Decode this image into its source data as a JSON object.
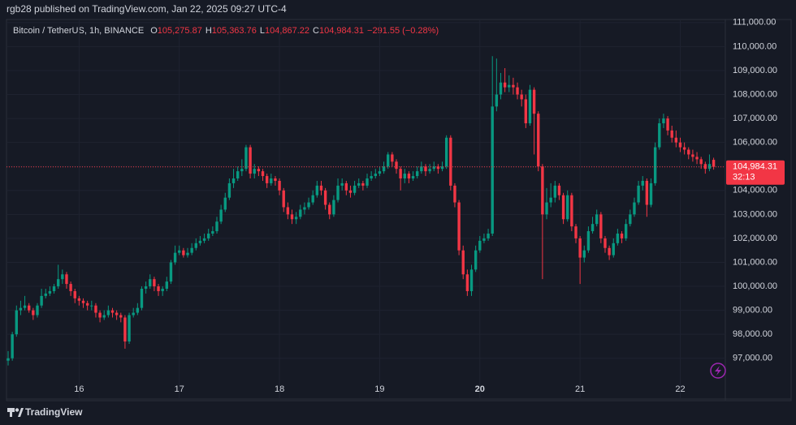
{
  "header": {
    "publisher": "rgb28 published on TradingView.com, Jan 22, 2025 09:27 UTC-4",
    "symbol": "Bitcoin / TetherUS, 1h, BINANCE",
    "ohlc": [
      {
        "key": "O",
        "value": "105,275.87"
      },
      {
        "key": "H",
        "value": "105,363.76"
      },
      {
        "key": "L",
        "value": "104,867.22"
      },
      {
        "key": "C",
        "value": "104,984.31"
      }
    ],
    "change": "−291.55 (−0.28%)"
  },
  "price_tag": {
    "price": "104,984.31",
    "countdown": "32:13"
  },
  "footer": {
    "brand": "TradingView"
  },
  "chart_data": {
    "type": "candlestick",
    "up_color": "#089981",
    "down_color": "#f23645",
    "grid": true,
    "last_price": 104984.31,
    "xlim": [
      -0.39,
      171.8
    ],
    "xticks": [
      {
        "value": 17,
        "label": "16"
      },
      {
        "value": 41,
        "label": "17"
      },
      {
        "value": 65,
        "label": "18"
      },
      {
        "value": 89,
        "label": "19"
      },
      {
        "value": 113,
        "label": "20"
      },
      {
        "value": 137,
        "label": "21"
      },
      {
        "value": 161,
        "label": "22"
      }
    ],
    "ylim": [
      95300,
      111130
    ],
    "yticks": [
      {
        "value": 97000,
        "label": "97,000.00"
      },
      {
        "value": 98000,
        "label": "98,000.00"
      },
      {
        "value": 99000,
        "label": "99,000.00"
      },
      {
        "value": 100000,
        "label": "100,000.00"
      },
      {
        "value": 101000,
        "label": "101,000.00"
      },
      {
        "value": 102000,
        "label": "102,000.00"
      },
      {
        "value": 103000,
        "label": "103,000.00"
      },
      {
        "value": 104000,
        "label": "104,000.00"
      },
      {
        "value": 105000,
        "label": "105,000.00"
      },
      {
        "value": 106000,
        "label": "106,000.00"
      },
      {
        "value": 107000,
        "label": "107,000.00"
      },
      {
        "value": 108000,
        "label": "108,000.00"
      },
      {
        "value": 109000,
        "label": "109,000.00"
      },
      {
        "value": 110000,
        "label": "110,000.00"
      },
      {
        "value": 111000,
        "label": "111,000.00"
      }
    ],
    "candles": [
      [
        96900,
        97300,
        96700,
        97000
      ],
      [
        97000,
        98100,
        96900,
        98000
      ],
      [
        98000,
        99200,
        97900,
        99000
      ],
      [
        99000,
        99400,
        98800,
        99100
      ],
      [
        99100,
        99600,
        99000,
        99200
      ],
      [
        99200,
        99300,
        98900,
        99000
      ],
      [
        99000,
        99100,
        98600,
        98800
      ],
      [
        98800,
        99300,
        98700,
        99200
      ],
      [
        99200,
        99900,
        99100,
        99600
      ],
      [
        99600,
        99900,
        99500,
        99700
      ],
      [
        99700,
        100000,
        99600,
        99800
      ],
      [
        99800,
        100100,
        99700,
        100000
      ],
      [
        100000,
        100900,
        99900,
        100300
      ],
      [
        100300,
        100700,
        100100,
        100500
      ],
      [
        100500,
        100600,
        99900,
        100100
      ],
      [
        100100,
        100200,
        99600,
        99800
      ],
      [
        99800,
        99900,
        99300,
        99500
      ],
      [
        99500,
        99600,
        99200,
        99400
      ],
      [
        99400,
        99500,
        99100,
        99300
      ],
      [
        99300,
        99400,
        99000,
        99200
      ],
      [
        99200,
        99400,
        99000,
        99200
      ],
      [
        99200,
        99300,
        98700,
        98900
      ],
      [
        98900,
        99000,
        98500,
        98700
      ],
      [
        98700,
        99000,
        98600,
        98800
      ],
      [
        98800,
        99200,
        98700,
        99000
      ],
      [
        99000,
        99100,
        98700,
        98900
      ],
      [
        98900,
        99000,
        98600,
        98800
      ],
      [
        98800,
        98900,
        98500,
        98700
      ],
      [
        98700,
        98800,
        97400,
        97700
      ],
      [
        97700,
        98900,
        97600,
        98800
      ],
      [
        98800,
        99100,
        98700,
        98900
      ],
      [
        98900,
        99300,
        98800,
        99100
      ],
      [
        99100,
        100000,
        99000,
        99900
      ],
      [
        99900,
        100200,
        99700,
        100000
      ],
      [
        100000,
        100500,
        99900,
        100300
      ],
      [
        100300,
        100400,
        99800,
        100000
      ],
      [
        100000,
        100100,
        99600,
        99800
      ],
      [
        99800,
        100000,
        99600,
        99900
      ],
      [
        99900,
        100400,
        99800,
        100200
      ],
      [
        100200,
        101100,
        100100,
        101000
      ],
      [
        101000,
        101700,
        100900,
        101400
      ],
      [
        101400,
        101700,
        101300,
        101500
      ],
      [
        101500,
        101600,
        101200,
        101300
      ],
      [
        101300,
        101600,
        101200,
        101400
      ],
      [
        101400,
        101800,
        101300,
        101600
      ],
      [
        101600,
        102000,
        101500,
        101800
      ],
      [
        101800,
        102100,
        101700,
        101900
      ],
      [
        101900,
        102200,
        101800,
        102000
      ],
      [
        102000,
        102400,
        101900,
        102200
      ],
      [
        102200,
        102500,
        102100,
        102300
      ],
      [
        102300,
        102900,
        102200,
        102700
      ],
      [
        102700,
        103400,
        102600,
        103200
      ],
      [
        103200,
        103900,
        103100,
        103700
      ],
      [
        103700,
        104500,
        103600,
        104300
      ],
      [
        104300,
        104900,
        104100,
        104500
      ],
      [
        104500,
        105000,
        104400,
        104800
      ],
      [
        104800,
        105300,
        104600,
        104900
      ],
      [
        104900,
        105900,
        104800,
        105800
      ],
      [
        105800,
        105900,
        104500,
        104700
      ],
      [
        104700,
        105100,
        104500,
        104900
      ],
      [
        104900,
        105000,
        104600,
        104800
      ],
      [
        104800,
        104900,
        104400,
        104600
      ],
      [
        104600,
        104700,
        104100,
        104300
      ],
      [
        104300,
        104700,
        104200,
        104500
      ],
      [
        104500,
        104600,
        104200,
        104400
      ],
      [
        104400,
        104500,
        103800,
        104000
      ],
      [
        104000,
        104100,
        103100,
        103300
      ],
      [
        103300,
        103500,
        102800,
        103000
      ],
      [
        103000,
        103200,
        102600,
        102800
      ],
      [
        102800,
        103100,
        102600,
        102900
      ],
      [
        102900,
        103400,
        102800,
        103200
      ],
      [
        103200,
        103500,
        103000,
        103300
      ],
      [
        103300,
        103700,
        103200,
        103500
      ],
      [
        103500,
        104000,
        103400,
        103800
      ],
      [
        103800,
        104400,
        103700,
        104200
      ],
      [
        104200,
        104400,
        103800,
        104000
      ],
      [
        104000,
        104100,
        103200,
        103400
      ],
      [
        103400,
        103500,
        102800,
        103000
      ],
      [
        103000,
        103800,
        102900,
        103600
      ],
      [
        103600,
        104500,
        103500,
        104200
      ],
      [
        104200,
        104500,
        104000,
        104300
      ],
      [
        104300,
        104400,
        103800,
        104000
      ],
      [
        104000,
        104200,
        103700,
        103900
      ],
      [
        103900,
        104400,
        103800,
        104200
      ],
      [
        104200,
        104500,
        104100,
        104300
      ],
      [
        104300,
        104400,
        104000,
        104200
      ],
      [
        104200,
        104700,
        104100,
        104500
      ],
      [
        104500,
        104800,
        104400,
        104600
      ],
      [
        104600,
        104900,
        104500,
        104700
      ],
      [
        104700,
        105000,
        104600,
        104800
      ],
      [
        104800,
        105200,
        104700,
        105000
      ],
      [
        105000,
        105600,
        104900,
        105500
      ],
      [
        105500,
        105600,
        105000,
        105200
      ],
      [
        105200,
        105300,
        104700,
        104900
      ],
      [
        104900,
        105000,
        104000,
        104500
      ],
      [
        104500,
        104900,
        104300,
        104700
      ],
      [
        104700,
        104800,
        104300,
        104500
      ],
      [
        104500,
        104800,
        104400,
        104600
      ],
      [
        104600,
        105000,
        104500,
        104800
      ],
      [
        104800,
        105200,
        104700,
        105000
      ],
      [
        105000,
        105100,
        104600,
        104800
      ],
      [
        104800,
        105100,
        104700,
        104900
      ],
      [
        104900,
        105200,
        104800,
        105000
      ],
      [
        105000,
        105100,
        104700,
        104900
      ],
      [
        104900,
        105200,
        104800,
        105000
      ],
      [
        105000,
        106300,
        104900,
        106200
      ],
      [
        106200,
        106300,
        104000,
        104200
      ],
      [
        104200,
        104300,
        103300,
        103500
      ],
      [
        103500,
        103600,
        101300,
        101500
      ],
      [
        101500,
        101700,
        100300,
        100500
      ],
      [
        100500,
        100700,
        99600,
        99800
      ],
      [
        99800,
        100900,
        99600,
        100700
      ],
      [
        100700,
        101700,
        100600,
        101500
      ],
      [
        101500,
        102100,
        101400,
        101900
      ],
      [
        101900,
        102200,
        101800,
        102000
      ],
      [
        102000,
        102400,
        101900,
        102200
      ],
      [
        102200,
        109600,
        102100,
        107500
      ],
      [
        107500,
        109500,
        107300,
        108000
      ],
      [
        108000,
        108900,
        107800,
        108500
      ],
      [
        108500,
        109100,
        108100,
        108300
      ],
      [
        108300,
        108800,
        108100,
        108400
      ],
      [
        108400,
        108700,
        108000,
        108300
      ],
      [
        108300,
        108500,
        107800,
        108000
      ],
      [
        108000,
        108200,
        107500,
        107800
      ],
      [
        107800,
        108000,
        106600,
        106800
      ],
      [
        106800,
        108400,
        106700,
        108200
      ],
      [
        108200,
        108300,
        105500,
        107200
      ],
      [
        107200,
        107300,
        104800,
        105000
      ],
      [
        105000,
        105100,
        100300,
        103000
      ],
      [
        103000,
        104100,
        102800,
        103500
      ],
      [
        103500,
        104300,
        103300,
        103700
      ],
      [
        103700,
        104400,
        103500,
        104200
      ],
      [
        104200,
        104300,
        103600,
        103800
      ],
      [
        103800,
        103900,
        102600,
        102800
      ],
      [
        102800,
        104000,
        102700,
        103800
      ],
      [
        103800,
        103900,
        102300,
        102500
      ],
      [
        102500,
        102600,
        101800,
        102000
      ],
      [
        102000,
        102100,
        100100,
        101200
      ],
      [
        101200,
        101700,
        101000,
        101500
      ],
      [
        101500,
        102500,
        101400,
        102300
      ],
      [
        102300,
        102900,
        102200,
        102600
      ],
      [
        102600,
        103200,
        102500,
        103000
      ],
      [
        103000,
        103100,
        101800,
        102000
      ],
      [
        102000,
        102100,
        101400,
        101600
      ],
      [
        101600,
        101700,
        101100,
        101300
      ],
      [
        101300,
        102000,
        101200,
        101800
      ],
      [
        101800,
        102400,
        101700,
        102200
      ],
      [
        102200,
        102300,
        101800,
        102000
      ],
      [
        102000,
        102800,
        101900,
        102600
      ],
      [
        102600,
        103200,
        102500,
        103000
      ],
      [
        103000,
        103700,
        102900,
        103500
      ],
      [
        103500,
        104400,
        103400,
        104200
      ],
      [
        104200,
        104600,
        104000,
        104400
      ],
      [
        104400,
        104500,
        102900,
        103400
      ],
      [
        103400,
        104500,
        103300,
        104300
      ],
      [
        104300,
        106000,
        104200,
        105800
      ],
      [
        105800,
        107000,
        105700,
        106800
      ],
      [
        106800,
        107200,
        106600,
        107000
      ],
      [
        107000,
        107100,
        106300,
        106500
      ],
      [
        106500,
        106700,
        106000,
        106200
      ],
      [
        106200,
        106500,
        105800,
        106000
      ],
      [
        106000,
        106200,
        105600,
        105800
      ],
      [
        105800,
        106000,
        105500,
        105700
      ],
      [
        105700,
        105800,
        105300,
        105500
      ],
      [
        105500,
        105700,
        105200,
        105400
      ],
      [
        105400,
        105600,
        105100,
        105300
      ],
      [
        105300,
        105400,
        104900,
        105100
      ],
      [
        105100,
        105200,
        104700,
        104900
      ],
      [
        104900,
        105500,
        104800,
        105100
      ],
      [
        105275.87,
        105363.76,
        104867.22,
        104984.31
      ]
    ]
  }
}
